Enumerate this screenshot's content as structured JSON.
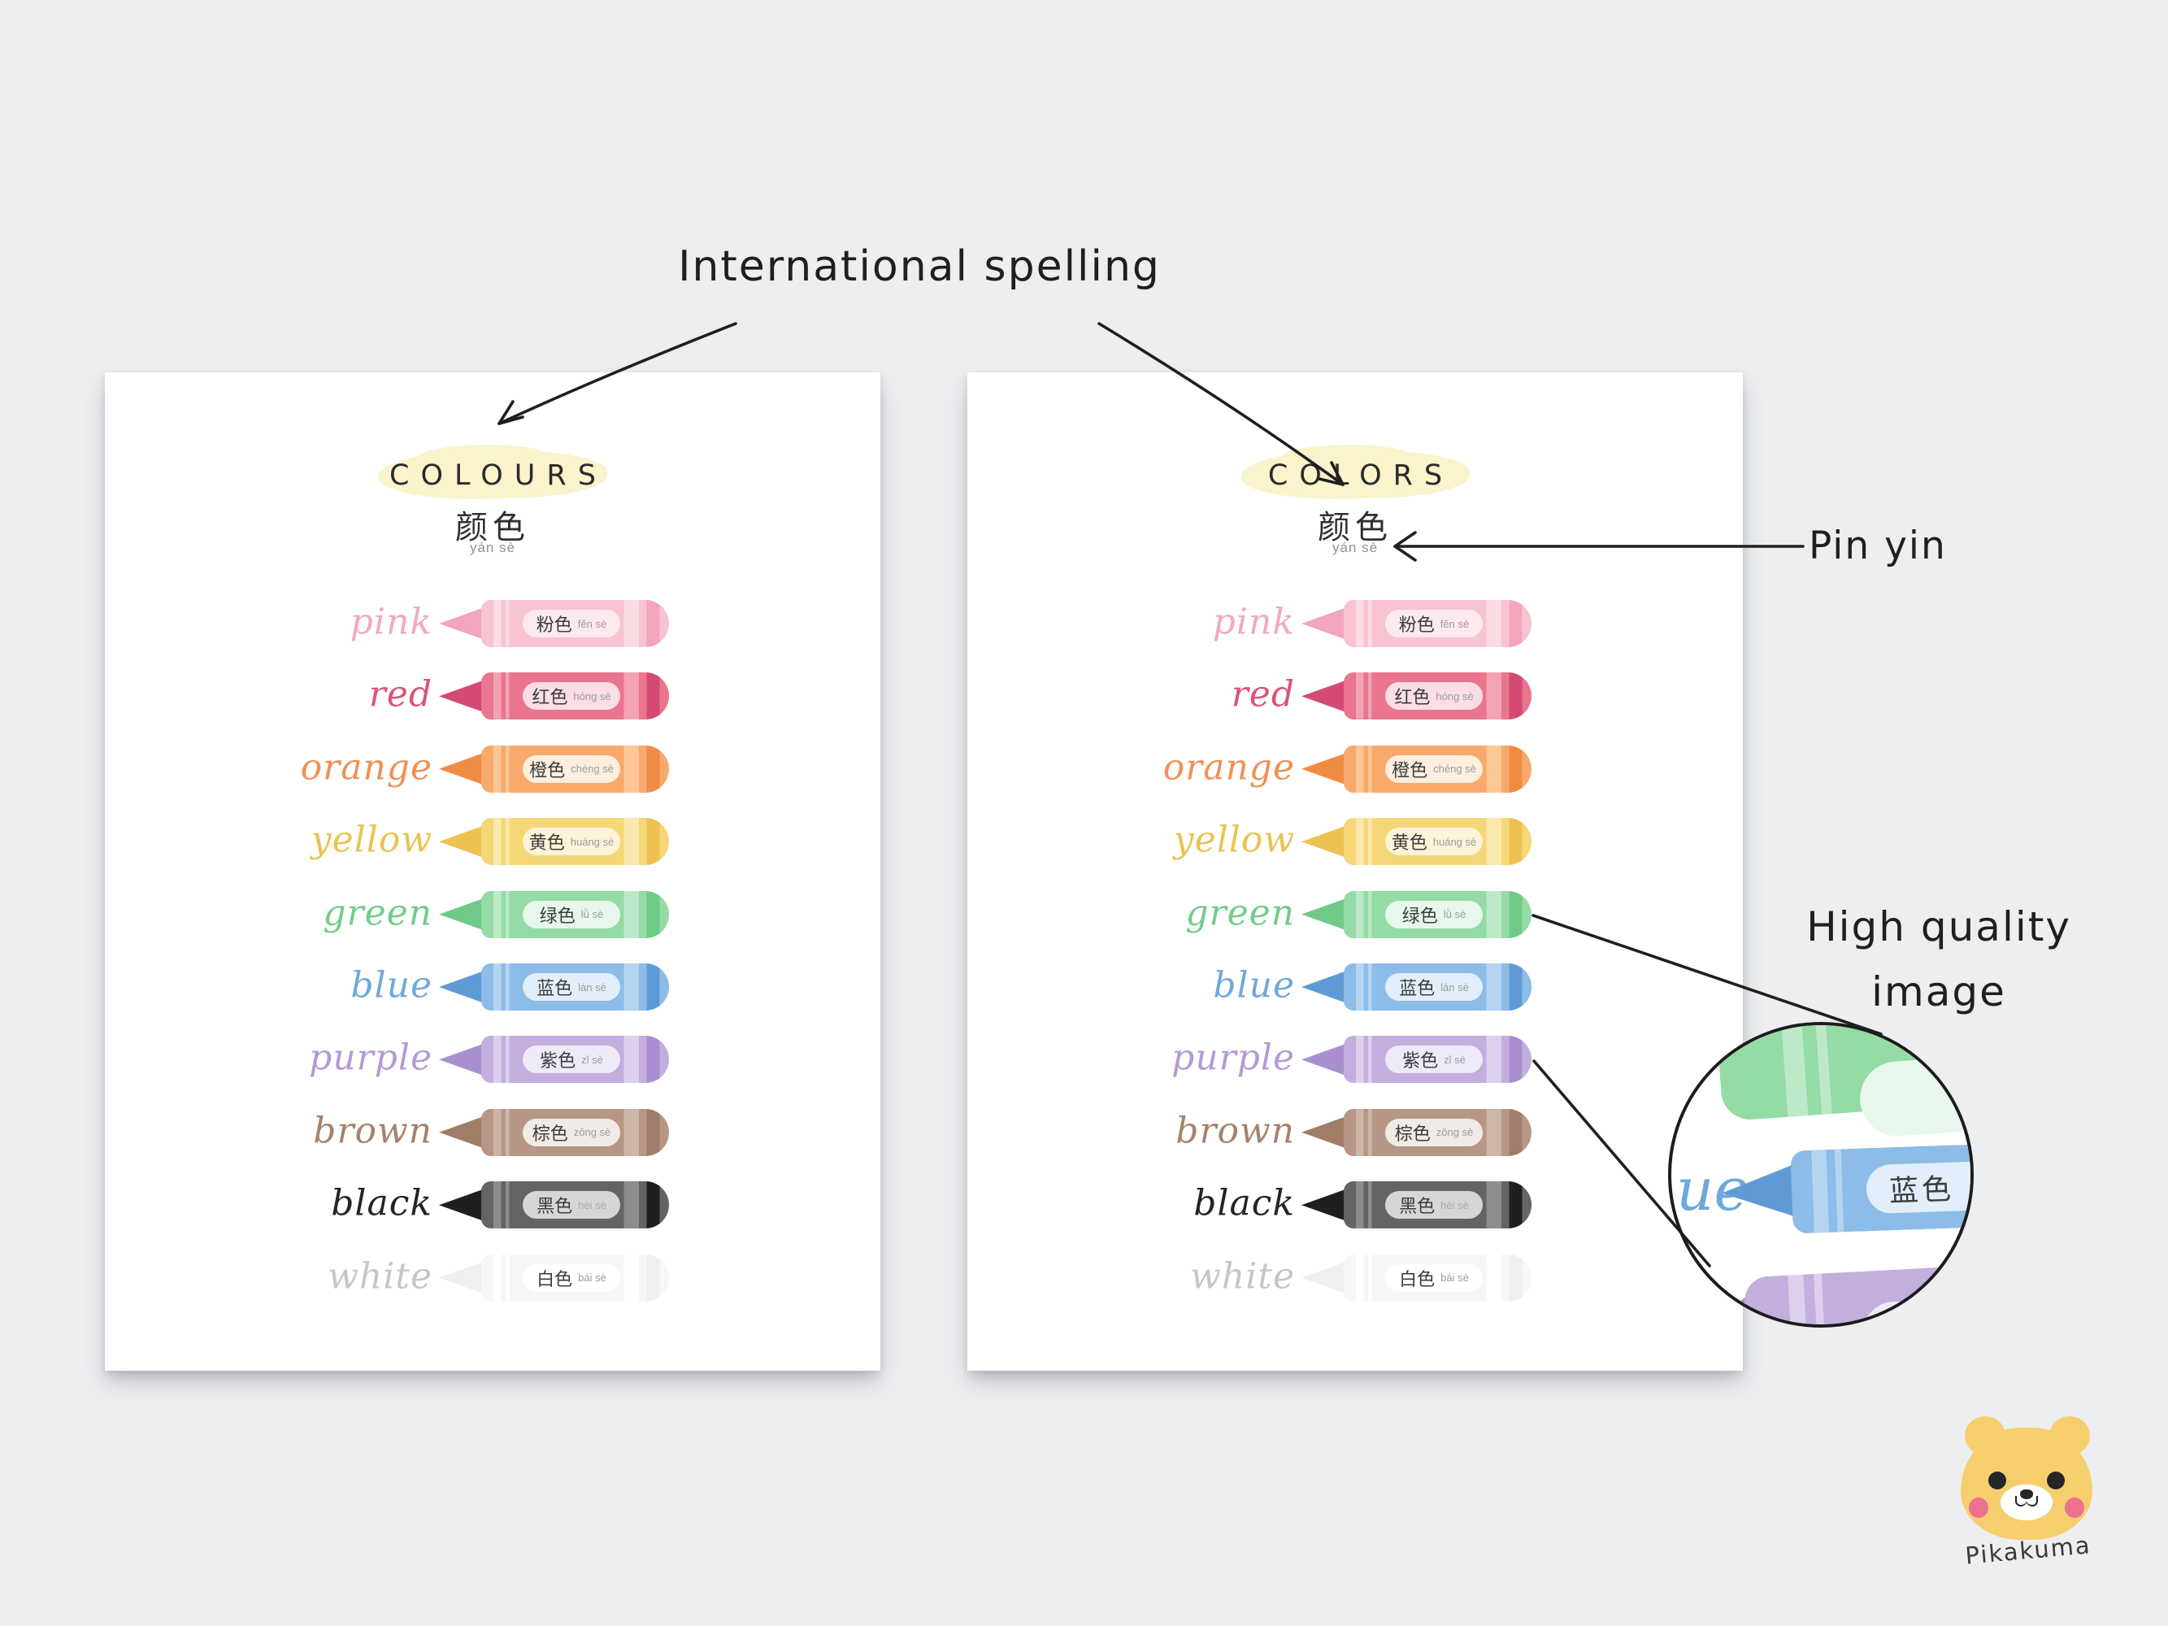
{
  "annotations": {
    "international_spelling": "International spelling",
    "pin_yin": "Pin yin",
    "high_quality_line1": "High quality",
    "high_quality_line2": "image"
  },
  "posters": [
    {
      "title": "COLOURS",
      "subtitle_zh": "颜色",
      "subtitle_pinyin": "yán sè"
    },
    {
      "title": "COLORS",
      "subtitle_zh": "颜色",
      "subtitle_pinyin": "yán sè"
    }
  ],
  "crayons": [
    {
      "name": "pink",
      "zh": "粉色",
      "pinyin": "fěn sè",
      "base": "#f8c4d1",
      "dark": "#f2a5bc",
      "light": "#fbdbe3",
      "pill": "#fdeaef",
      "script": "#f2a9bd"
    },
    {
      "name": "red",
      "zh": "红色",
      "pinyin": "hóng sè",
      "base": "#e9758f",
      "dark": "#d34a72",
      "light": "#f2a3b5",
      "pill": "#fadde5",
      "script": "#d95576"
    },
    {
      "name": "orange",
      "zh": "橙色",
      "pinyin": "chéng sè",
      "base": "#f8a96b",
      "dark": "#f08b44",
      "light": "#fbc795",
      "pill": "#fdeede",
      "script": "#f19054"
    },
    {
      "name": "yellow",
      "zh": "黄色",
      "pinyin": "huáng sè",
      "base": "#f5d778",
      "dark": "#edc253",
      "light": "#fae8ad",
      "pill": "#fcf3d8",
      "script": "#e9c353"
    },
    {
      "name": "green",
      "zh": "绿色",
      "pinyin": "lǜ sè",
      "base": "#94dba6",
      "dark": "#6fca88",
      "light": "#bce9c7",
      "pill": "#e7f7ec",
      "script": "#72cc8a"
    },
    {
      "name": "blue",
      "zh": "蓝色",
      "pinyin": "lán sè",
      "base": "#8cbce7",
      "dark": "#5e9bd4",
      "light": "#b5d4f0",
      "pill": "#e2eefa",
      "script": "#6fa9dc"
    },
    {
      "name": "purple",
      "zh": "紫色",
      "pinyin": "zǐ sè",
      "base": "#c3aede",
      "dark": "#a98fd0",
      "light": "#dcd0ee",
      "pill": "#efeaf8",
      "script": "#b49ad6"
    },
    {
      "name": "brown",
      "zh": "棕色",
      "pinyin": "zōng sè",
      "base": "#b69786",
      "dark": "#a07d68",
      "light": "#cdb5a8",
      "pill": "#f1eae5",
      "script": "#a6826d"
    },
    {
      "name": "black",
      "zh": "黑色",
      "pinyin": "hēi sè",
      "base": "#646464",
      "dark": "#1f1f1f",
      "light": "#8d8d8d",
      "pill": "#d6d6d6",
      "script": "#242424"
    },
    {
      "name": "white",
      "zh": "白色",
      "pinyin": "bái sè",
      "base": "#f7f7f8",
      "dark": "#efeff1",
      "light": "#ffffff",
      "pill": "#ffffff",
      "script": "#c6c6c6"
    }
  ],
  "magnifier": {
    "script_fragment": "ue",
    "label_zh": "蓝色"
  },
  "logo": {
    "text": "Pikakuma"
  },
  "colors": {
    "background": "#edeef0",
    "title_highlight": "#faf3cb",
    "annotation_ink": "#1f1f1f",
    "bear_yellow": "#f6cf6d",
    "bear_cheek": "#ee7090"
  }
}
